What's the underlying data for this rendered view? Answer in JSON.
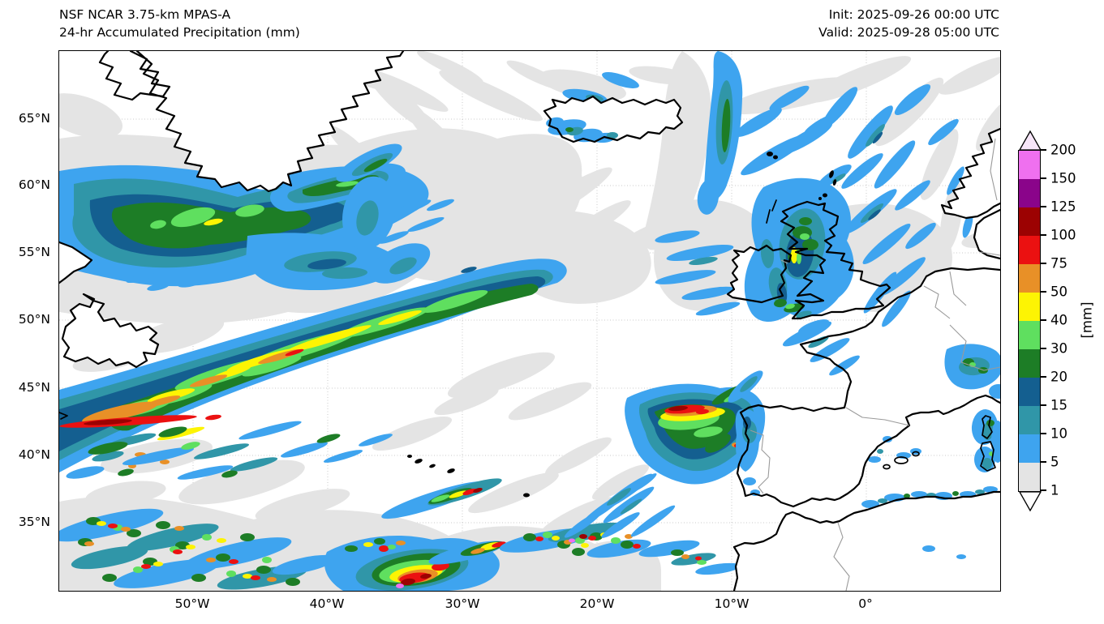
{
  "header": {
    "model": "NSF NCAR 3.75-km MPAS-A",
    "product": "24-hr Accumulated Precipitation (mm)",
    "init": "Init: 2025-09-26 00:00 UTC",
    "valid": "Valid: 2025-09-28 05:00 UTC"
  },
  "axes": {
    "lat_labels": [
      "65°N",
      "60°N",
      "55°N",
      "50°N",
      "45°N",
      "40°N",
      "35°N"
    ],
    "lon_labels": [
      "50°W",
      "40°W",
      "30°W",
      "20°W",
      "10°W",
      "0°"
    ]
  },
  "colorbar": {
    "unit_label": "[mm]",
    "tick_labels": [
      "200",
      "150",
      "125",
      "100",
      "75",
      "50",
      "40",
      "30",
      "20",
      "15",
      "10",
      "5",
      "1"
    ],
    "segment_colors_top_to_bottom": [
      "#ef70ef",
      "#8a048a",
      "#9c0202",
      "#eb1111",
      "#e89027",
      "#fdf403",
      "#5fdf5f",
      "#1d7d26",
      "#145f90",
      "#3096a8",
      "#3ea4ef",
      "#e4e4e4"
    ],
    "over_arrow_color": "#f7e6f9",
    "under_arrow_color": "#ffffff"
  }
}
